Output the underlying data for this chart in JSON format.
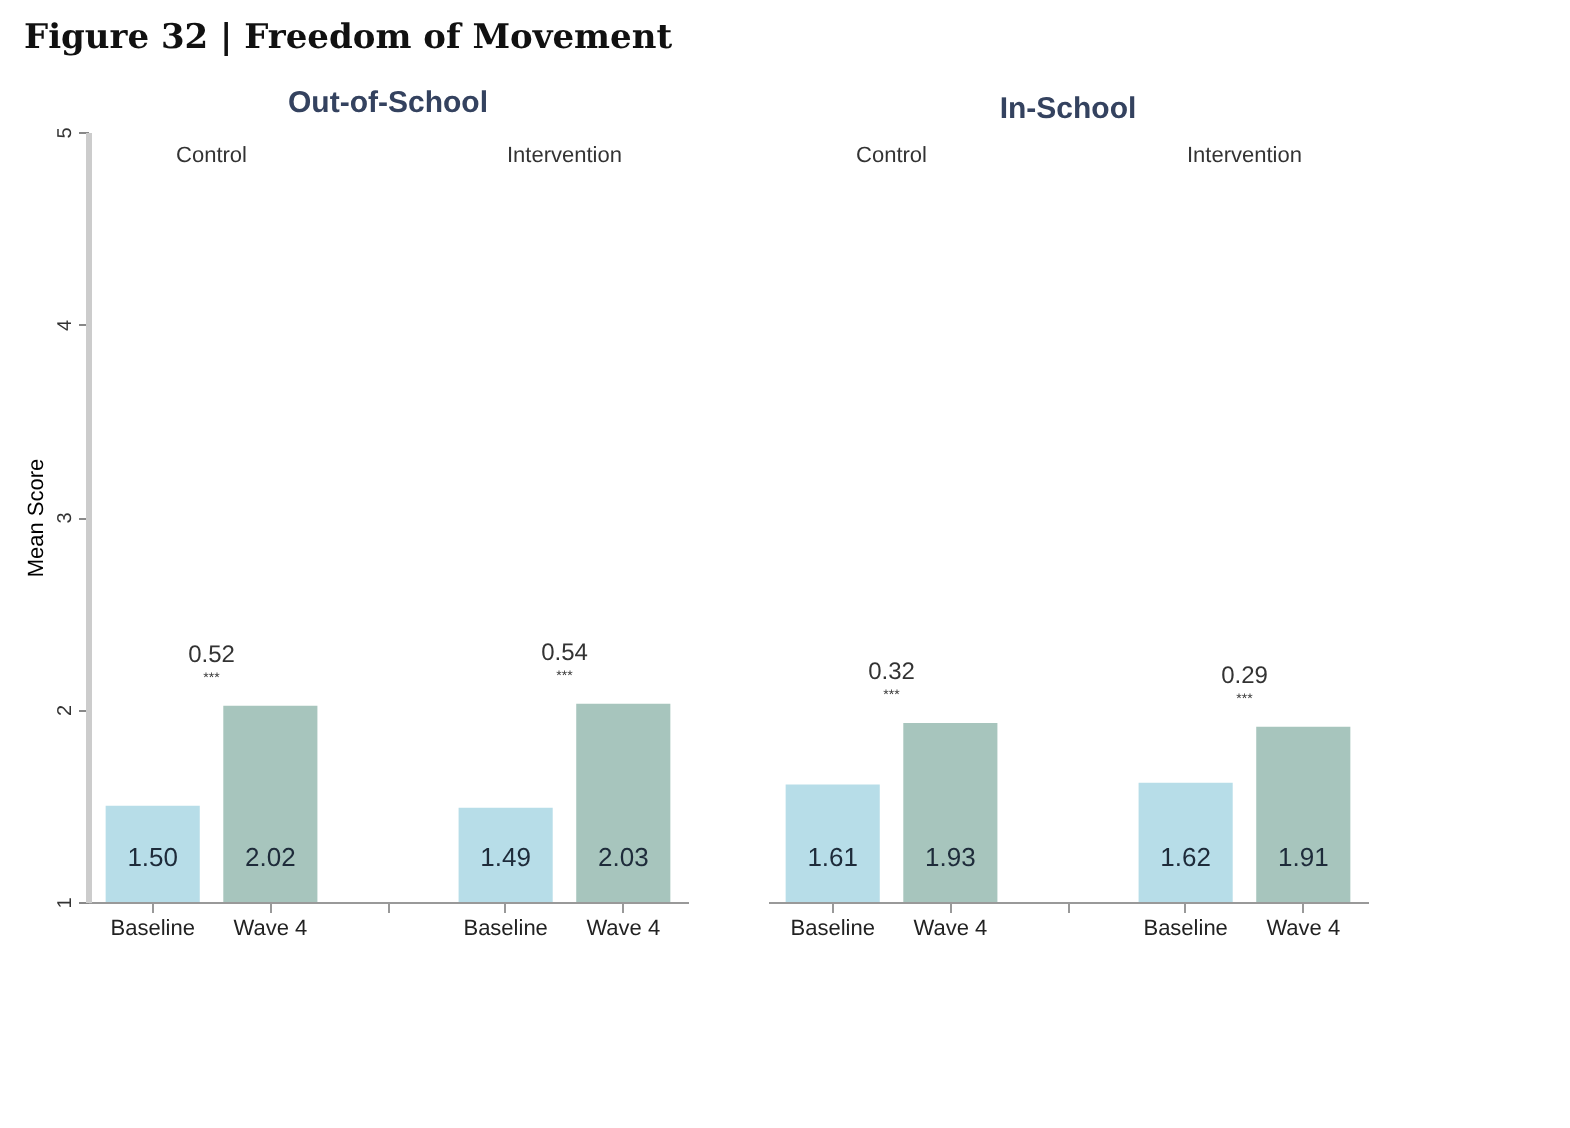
{
  "chart_data": [
    {
      "type": "bar",
      "title": "Figure 32 | Freedom of Movement",
      "subtitle": "Out-of-School",
      "ylabel": "Mean Score",
      "categories": [
        "Baseline",
        "Wave 4",
        "Baseline",
        "Wave 4"
      ],
      "values": [
        1.5,
        2.02,
        1.49,
        2.03
      ],
      "colors": [
        "#b7dde8",
        "#a7c5bd",
        "#b7dde8",
        "#a7c5bd"
      ],
      "ylim": [
        1,
        5
      ],
      "yticks": [
        1,
        2,
        3,
        4,
        5
      ],
      "value_labels": [
        "1.50",
        "2.02",
        "1.49",
        "2.03"
      ],
      "annotations": [
        "Control",
        "0.52",
        "***",
        "Intervention",
        "0.54",
        "***"
      ]
    },
    {
      "type": "bar",
      "subtitle": "In-School",
      "categories": [
        "Baseline",
        "Wave 4",
        "Baseline",
        "Wave 4"
      ],
      "values": [
        1.61,
        1.93,
        1.62,
        1.91
      ],
      "colors": [
        "#b7dde8",
        "#a7c5bd",
        "#b7dde8",
        "#a7c5bd"
      ],
      "ylim": [
        1,
        5
      ],
      "value_labels": [
        "1.61",
        "1.93",
        "1.62",
        "1.91"
      ],
      "tick_labels": "x",
      "annotations": [
        "Control",
        "0.32",
        "***",
        "Intervention",
        "0.29",
        "***"
      ]
    }
  ]
}
